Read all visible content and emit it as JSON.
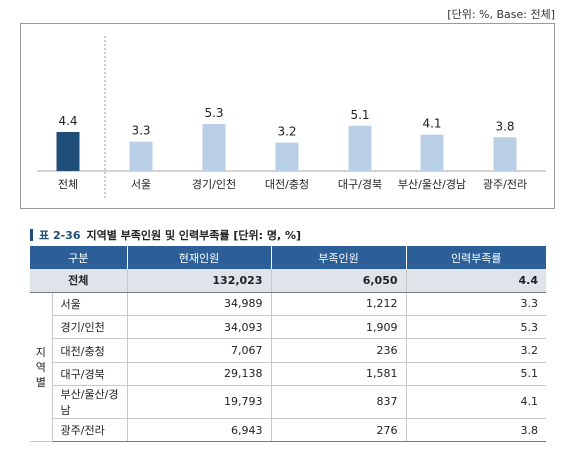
{
  "unit_note": "[단위: %, Base: 전체]",
  "chart_data": {
    "type": "bar",
    "categories": [
      "전체",
      "서울",
      "경기/인천",
      "대전/충청",
      "대구/경북",
      "부산/울산/경남",
      "광주/전라"
    ],
    "values": [
      4.4,
      3.3,
      5.3,
      3.2,
      5.1,
      4.1,
      3.8
    ],
    "value_labels": [
      "4.4",
      "3.3",
      "5.3",
      "3.2",
      "5.1",
      "4.1",
      "3.8"
    ],
    "colors": {
      "total": "#1f4e79",
      "region": "#b8cfe6"
    },
    "grid": false
  },
  "table": {
    "title_num": "표 2-36",
    "title": "지역별 부족인원 및 인력부족률 [단위: 명, %]",
    "headers": [
      "구분",
      "현재인원",
      "부족인원",
      "인력부족률"
    ],
    "total": {
      "label": "전체",
      "current": "132,023",
      "shortage": "6,050",
      "rate": "4.4"
    },
    "group_label": [
      "지",
      "역",
      "별"
    ],
    "rows": [
      {
        "region": "서울",
        "current": "34,989",
        "shortage": "1,212",
        "rate": "3.3"
      },
      {
        "region": "경기/인천",
        "current": "34,093",
        "shortage": "1,909",
        "rate": "5.3"
      },
      {
        "region": "대전/충청",
        "current": "7,067",
        "shortage": "236",
        "rate": "3.2"
      },
      {
        "region": "대구/경북",
        "current": "29,138",
        "shortage": "1,581",
        "rate": "5.1"
      },
      {
        "region": "부산/울산/경남",
        "current": "19,793",
        "shortage": "837",
        "rate": "4.1"
      },
      {
        "region": "광주/전라",
        "current": "6,943",
        "shortage": "276",
        "rate": "3.8"
      }
    ]
  }
}
